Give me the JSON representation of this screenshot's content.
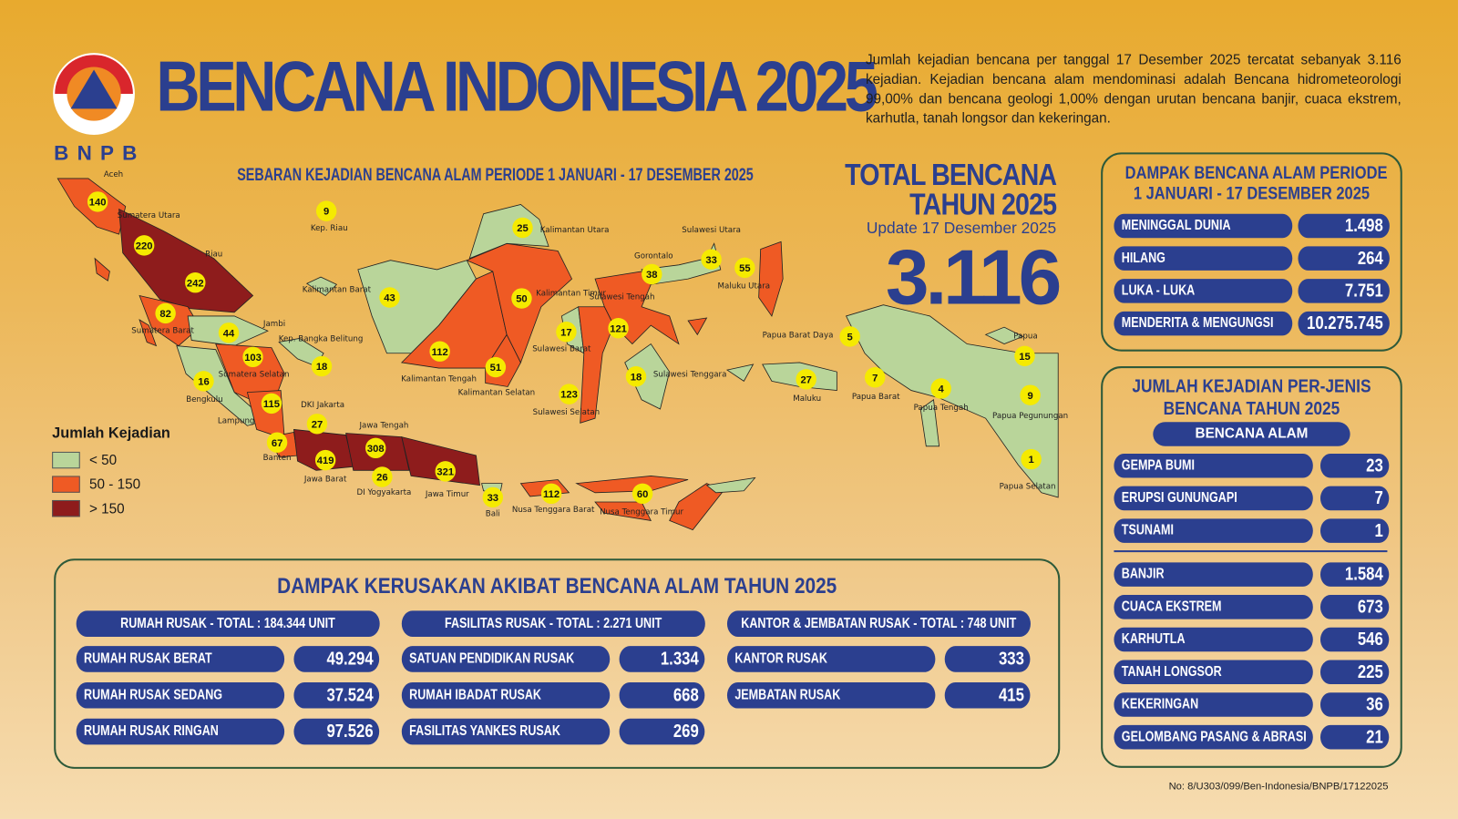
{
  "header": {
    "logo": {
      "ring_text_top": "BADAN NASIONAL",
      "ring_text_bottom": "PENANGGULANGAN BENCANA",
      "acronym": "BNPB"
    },
    "title": "BENCANA INDONESIA 2025",
    "intro": "Jumlah kejadian bencana per tanggal 17 Desember 2025 tercatat sebanyak 3.116 kejadian. Kejadian bencana alam mendominasi adalah Bencana hidrometeorologi 99,00% dan bencana geologi 1,00% dengan urutan bencana banjir, cuaca ekstrem, karhutla, tanah longsor dan kekeringan."
  },
  "map": {
    "title": "SEBARAN KEJADIAN BENCANA ALAM PERIODE 1 JANUARI - 17 DESEMBER 2025",
    "colors": {
      "low": "#b9d59a",
      "mid": "#ef5a24",
      "high": "#8e1c1c",
      "marker": "#f5ea00"
    },
    "legend": {
      "title": "Jumlah Kejadian",
      "items": [
        {
          "label": "< 50",
          "level": "low"
        },
        {
          "label": "50 - 150",
          "level": "mid"
        },
        {
          "label": "> 150",
          "level": "high"
        }
      ]
    },
    "provinces": [
      {
        "name": "Aceh",
        "count": "140",
        "level": "mid"
      },
      {
        "name": "Sumatera Utara",
        "count": "220",
        "level": "high"
      },
      {
        "name": "Riau",
        "count": "242",
        "level": "high"
      },
      {
        "name": "Sumatera Barat",
        "count": "82",
        "level": "mid"
      },
      {
        "name": "Jambi",
        "count": "44",
        "level": "low"
      },
      {
        "name": "Sumatera Selatan",
        "count": "103",
        "level": "mid"
      },
      {
        "name": "Bengkulu",
        "count": "16",
        "level": "low"
      },
      {
        "name": "Lampung",
        "count": "115",
        "level": "mid"
      },
      {
        "name": "Kep. Bangka Belitung",
        "count": "18",
        "level": "low"
      },
      {
        "name": "Kep. Riau",
        "count": "9",
        "level": "low"
      },
      {
        "name": "DKI Jakarta",
        "count": "27",
        "level": "low"
      },
      {
        "name": "Banten",
        "count": "67",
        "level": "mid"
      },
      {
        "name": "Jawa Barat",
        "count": "419",
        "level": "high"
      },
      {
        "name": "Jawa Tengah",
        "count": "308",
        "level": "high"
      },
      {
        "name": "DI Yogyakarta",
        "count": "26",
        "level": "low"
      },
      {
        "name": "Jawa Timur",
        "count": "321",
        "level": "high"
      },
      {
        "name": "Bali",
        "count": "33",
        "level": "low"
      },
      {
        "name": "Nusa Tenggara Barat",
        "count": "112",
        "level": "mid"
      },
      {
        "name": "Nusa Tenggara Timur",
        "count": "60",
        "level": "mid"
      },
      {
        "name": "Kalimantan Barat",
        "count": "43",
        "level": "low"
      },
      {
        "name": "Kalimantan Tengah",
        "count": "112",
        "level": "mid"
      },
      {
        "name": "Kalimantan Selatan",
        "count": "51",
        "level": "mid"
      },
      {
        "name": "Kalimantan Timur",
        "count": "50",
        "level": "mid"
      },
      {
        "name": "Kalimantan Utara",
        "count": "25",
        "level": "low"
      },
      {
        "name": "Sulawesi Barat",
        "count": "17",
        "level": "low"
      },
      {
        "name": "Sulawesi Selatan",
        "count": "123",
        "level": "mid"
      },
      {
        "name": "Sulawesi Tengah",
        "count": "121",
        "level": "mid"
      },
      {
        "name": "Sulawesi Tenggara",
        "count": "18",
        "level": "low"
      },
      {
        "name": "Gorontalo",
        "count": "38",
        "level": "low"
      },
      {
        "name": "Sulawesi Utara",
        "count": "33",
        "level": "low"
      },
      {
        "name": "Maluku Utara",
        "count": "55",
        "level": "mid"
      },
      {
        "name": "Maluku",
        "count": "27",
        "level": "low"
      },
      {
        "name": "Papua Barat Daya",
        "count": "5",
        "level": "low"
      },
      {
        "name": "Papua Barat",
        "count": "7",
        "level": "low"
      },
      {
        "name": "Papua Tengah",
        "count": "4",
        "level": "low"
      },
      {
        "name": "Papua",
        "count": "15",
        "level": "low"
      },
      {
        "name": "Papua Pegunungan",
        "count": "9",
        "level": "low"
      },
      {
        "name": "Papua Selatan",
        "count": "1",
        "level": "low"
      }
    ]
  },
  "total": {
    "title_line1": "TOTAL BENCANA",
    "title_line2": "TAHUN 2025",
    "update": "Update 17 Desember 2025",
    "value": "3.116"
  },
  "impact": {
    "title_line1": "DAMPAK BENCANA ALAM PERIODE",
    "title_line2": "1 JANUARI - 17 DESEMBER 2025",
    "rows": [
      {
        "label": "MENINGGAL DUNIA",
        "value": "1.498"
      },
      {
        "label": "HILANG",
        "value": "264"
      },
      {
        "label": "LUKA - LUKA",
        "value": "7.751"
      },
      {
        "label": "MENDERITA & MENGUNGSI",
        "value": "10.275.745"
      }
    ]
  },
  "by_type": {
    "title_line1": "JUMLAH KEJADIAN PER-JENIS",
    "title_line2": "BENCANA TAHUN 2025",
    "subheader": "BENCANA ALAM",
    "geological": [
      {
        "label": "GEMPA BUMI",
        "value": "23"
      },
      {
        "label": "ERUPSI GUNUNGAPI",
        "value": "7"
      },
      {
        "label": "TSUNAMI",
        "value": "1"
      }
    ],
    "hydrometeorological": [
      {
        "label": "BANJIR",
        "value": "1.584"
      },
      {
        "label": "CUACA EKSTREM",
        "value": "673"
      },
      {
        "label": "KARHUTLA",
        "value": "546"
      },
      {
        "label": "TANAH LONGSOR",
        "value": "225"
      },
      {
        "label": "KEKERINGAN",
        "value": "36"
      },
      {
        "label": "GELOMBANG PASANG & ABRASI",
        "value": "21"
      }
    ]
  },
  "damage": {
    "title": "DAMPAK KERUSAKAN AKIBAT BENCANA ALAM TAHUN 2025",
    "columns": [
      {
        "header": "RUMAH RUSAK - TOTAL : 184.344 UNIT",
        "rows": [
          {
            "label": "RUMAH RUSAK BERAT",
            "value": "49.294"
          },
          {
            "label": "RUMAH RUSAK SEDANG",
            "value": "37.524"
          },
          {
            "label": "RUMAH RUSAK RINGAN",
            "value": "97.526"
          }
        ]
      },
      {
        "header": "FASILITAS RUSAK - TOTAL : 2.271 UNIT",
        "rows": [
          {
            "label": "SATUAN PENDIDIKAN RUSAK",
            "value": "1.334"
          },
          {
            "label": "RUMAH IBADAT RUSAK",
            "value": "668"
          },
          {
            "label": "FASILITAS YANKES RUSAK",
            "value": "269"
          }
        ]
      },
      {
        "header": "KANTOR & JEMBATAN RUSAK - TOTAL : 748 UNIT",
        "rows": [
          {
            "label": "KANTOR RUSAK",
            "value": "333"
          },
          {
            "label": "JEMBATAN RUSAK",
            "value": "415"
          }
        ]
      }
    ]
  },
  "footnote": "No: 8/U303/099/Ben-Indonesia/BNPB/17122025"
}
